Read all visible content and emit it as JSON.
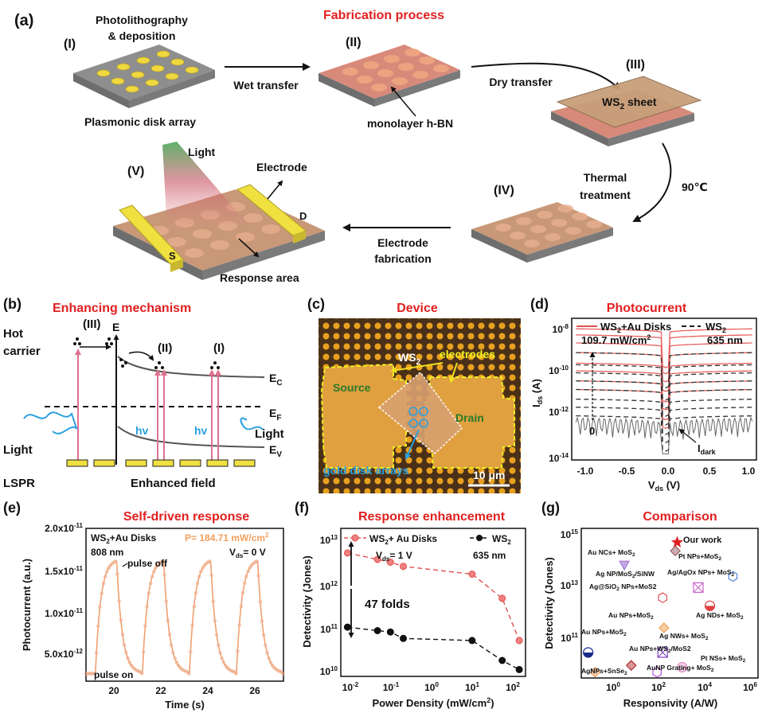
{
  "panel_a": {
    "letter": "(a)",
    "title": "Fabrication process",
    "step_I": "(I)",
    "step_II": "(II)",
    "step_III": "(III)",
    "step_IV": "(IV)",
    "step_V": "(V)",
    "photolith_line1": "Photolithography",
    "photolith_line2": "& deposition",
    "plasmonic_label": "Plasmonic disk array",
    "wet_transfer": "Wet transfer",
    "hbn_label": "monolayer h-BN",
    "dry_transfer": "Dry transfer",
    "ws2_sheet": "WS2 sheet",
    "thermal_line1": "Thermal",
    "thermal_line2": "treatment",
    "temperature": "90℃",
    "electrode_fab_line1": "Electrode",
    "electrode_fab_line2": "fabrication",
    "light_label": "Light",
    "electrode_label": "Electrode",
    "response_area": "Response area",
    "s_label": "S",
    "d_label": "D"
  },
  "panel_b": {
    "letter": "(b)",
    "title": "Enhancing mechanism",
    "hot_carrier_line1": "Hot",
    "hot_carrier_line2": "carrier",
    "mark_III": "(III)",
    "mark_II": "(II)",
    "mark_I": "(I)",
    "axis_E": "E",
    "ec": "EC",
    "ef": "EF",
    "ev": "EV",
    "hv": "hv",
    "light_left": "Light",
    "light_right": "Light",
    "lspr": "LSPR",
    "enhanced_field": "Enhanced field"
  },
  "panel_c": {
    "letter": "(c)",
    "title": "Device",
    "ws2": "WS2",
    "electrodes": "electrodes",
    "source": "Source",
    "drain": "Drain",
    "gold_disk": "gold disk arrays",
    "scale": "10 μm"
  },
  "panel_d": {
    "letter": "(d)",
    "title": "Photocurrent",
    "legend_1": "WS2+Au Disks",
    "legend_2": "WS2",
    "power": "109.7 mW/cm2",
    "wavelength": "635 nm",
    "zero": "0",
    "idark": "Idark",
    "xlabel": "Vds (V)",
    "ylabel": "Ids (A)",
    "xticks": [
      "-1.0",
      "-0.5",
      "0.0",
      "0.5",
      "1.0"
    ],
    "yticks": [
      "10-8",
      "10-10",
      "10-12",
      "10-14"
    ]
  },
  "panel_e": {
    "letter": "(e)",
    "title": "Self-driven response",
    "device": "WS2+Au Disks",
    "wavelength": "808 nm",
    "power": "P= 184.71 mW/cm2",
    "vds": "Vds= 0 V",
    "pulse_off": "pulse off",
    "pulse_on": "pulse on",
    "xlabel": "Time (s)",
    "ylabel": "Photocurrent (a.u.)",
    "xticks": [
      "20",
      "22",
      "24",
      "26"
    ],
    "yticks": [
      "2.0x10-11",
      "1.5x10-11",
      "1.0x10-11",
      "5.0x10-12"
    ]
  },
  "panel_f": {
    "letter": "(f)",
    "title": "Response enhancement",
    "legend_1": "WS2+ Au Disks",
    "legend_2": "WS2",
    "vds": "Vds= 1 V",
    "wavelength": "635 nm",
    "folds": "47 folds",
    "xlabel": "Power Density (mW/cm2)",
    "ylabel": "Detectivity (Jones)",
    "xticks": [
      "10-2",
      "10-1",
      "100",
      "101",
      "102"
    ],
    "yticks": [
      "1013",
      "1012",
      "1011",
      "1010"
    ]
  },
  "panel_g": {
    "letter": "(g)",
    "title": "Comparison",
    "our_work": "Our work",
    "xlabel": "Responsivity (A/W)",
    "ylabel": "Detectivity (Jones)",
    "xticks": [
      "100",
      "102",
      "104",
      "106"
    ],
    "yticks": [
      "1015",
      "1013",
      "1011"
    ],
    "labels": [
      "Au NCs+ MoS2",
      "Pt NPs+MoS2",
      "Ag/AgOx NPs+ MoS2",
      "Ag@SiO2 NPs+MoS2",
      "Ag NP/MoS2/SiNW",
      "Au NPs+MoS2",
      "Ag NDs+ MoS2",
      "Au NPs+MoS2",
      "Ag NWs+ MoS2",
      "Au NPs+WS2/MoS2",
      "Pt NSs+ MoS2",
      "AuNP Grating+ MoS2",
      "AgNPs+SnSe2"
    ]
  },
  "chart_data": [
    {
      "type": "line",
      "panel": "(d)",
      "title": "Photocurrent",
      "xlabel": "Vds (V)",
      "ylabel": "Ids (A)",
      "xlim": [
        -1.1,
        1.1
      ],
      "ylim": [
        1e-14,
        1e-07
      ],
      "yscale": "log",
      "series": [
        {
          "name": "WS2+Au Disks",
          "style": "solid red",
          "curve_count": 8
        },
        {
          "name": "WS2",
          "style": "dashed black",
          "curve_count": 8
        }
      ],
      "annotations": [
        "109.7 mW/cm2",
        "635 nm",
        "0",
        "Idark"
      ]
    },
    {
      "type": "line",
      "panel": "(e)",
      "title": "Self-driven response",
      "xlabel": "Time (s)",
      "ylabel": "Photocurrent (a.u.)",
      "xlim": [
        19,
        27.4
      ],
      "ylim": [
        0,
        2e-11
      ],
      "pulse_on_times": [
        20.3,
        22.3,
        24.3,
        26.3
      ],
      "pulse_off_times": [
        19.2,
        21.2,
        23.2,
        25.2
      ],
      "peak_value": 1.6e-11,
      "baseline_value": 1e-12
    },
    {
      "type": "scatter",
      "panel": "(f)",
      "title": "Response enhancement",
      "xlabel": "Power Density (mW/cm2)",
      "ylabel": "Detectivity (Jones)",
      "xscale": "log",
      "yscale": "log",
      "xlim": [
        0.007,
        140
      ],
      "ylim": [
        7000000000.0,
        15000000000000.0
      ],
      "x": [
        0.01,
        0.05,
        0.1,
        0.2,
        8,
        40,
        100
      ],
      "series": [
        {
          "name": "WS2+ Au Disks",
          "values": [
            4200000000000.0,
            3000000000000.0,
            2600000000000.0,
            2100000000000.0,
            1400000000000.0,
            400000000000.0,
            45000000000.0
          ]
        },
        {
          "name": "WS2",
          "values": [
            90000000000.0,
            75000000000.0,
            70000000000.0,
            50000000000.0,
            45000000000.0,
            16000000000.0,
            10000000000.0
          ]
        }
      ],
      "annotations": [
        "Vds= 1 V",
        "635 nm",
        "47 folds"
      ]
    },
    {
      "type": "scatter",
      "panel": "(g)",
      "title": "Comparison",
      "xlabel": "Responsivity (A/W)",
      "ylabel": "Detectivity (Jones)",
      "xscale": "log",
      "yscale": "log",
      "xlim": [
        0.02,
        1000000.0
      ],
      "ylim": [
        5000000000.0,
        1000000000000000.0
      ],
      "points": [
        {
          "label": "Our work",
          "x": 300,
          "y": 320000000000000.0,
          "color": "#e02020",
          "marker": "star"
        },
        {
          "label": "Pt NPs+MoS2",
          "x": 250,
          "y": 160000000000000.0,
          "color": "#9b6060",
          "marker": "diamond"
        },
        {
          "label": "Au NCs+ MoS2",
          "x": 1.5,
          "y": 50000000000000.0,
          "color": "#9c6fd0",
          "marker": "triangle"
        },
        {
          "label": "Ag/AgOx NPs+ MoS2",
          "x": 80000.0,
          "y": 20000000000000.0,
          "color": "#4f86d9",
          "marker": "hexcircle"
        },
        {
          "label": "Ag@SiO2 NPs+MoS2",
          "x": 2500,
          "y": 8000000000000.0,
          "color": "#c660c6",
          "marker": "xbox"
        },
        {
          "label": "Ag NP/MoS2/SiNW",
          "x": 70,
          "y": 3500000000000.0,
          "color": "#e05050",
          "marker": "hexagon"
        },
        {
          "label": "Ag NDs+ MoS2",
          "x": 8000,
          "y": 1800000000000.0,
          "color": "#e04040",
          "marker": "halfcircle"
        },
        {
          "label": "Au NPs+MoS2",
          "x": 80,
          "y": 300000000000.0,
          "color": "#f0a050",
          "marker": "diamond"
        },
        {
          "label": "Au NPs+MoS2",
          "x": 0.04,
          "y": 40000000000.0,
          "color": "#1a2a8a",
          "marker": "halfcircle"
        },
        {
          "label": "Ag NWs+ MoS2",
          "x": 70,
          "y": 40000000000.0,
          "color": "#8040c0",
          "marker": "gridbox"
        },
        {
          "label": "Au NPs+WS2/MoS2",
          "x": 3,
          "y": 14000000000.0,
          "color": "#b03030",
          "marker": "diamond"
        },
        {
          "label": "Pt NSs+ MoS2",
          "x": 500,
          "y": 12000000000.0,
          "color": "#e080c0",
          "marker": "circle"
        },
        {
          "label": "AuNP Grating+ MoS2",
          "x": 40,
          "y": 8000000000.0,
          "color": "#c050e0",
          "marker": "hexagon"
        },
        {
          "label": "AgNPs+SnSe2",
          "x": 0.08,
          "y": 8000000000.0,
          "color": "#f0a060",
          "marker": "diamond"
        }
      ]
    }
  ]
}
